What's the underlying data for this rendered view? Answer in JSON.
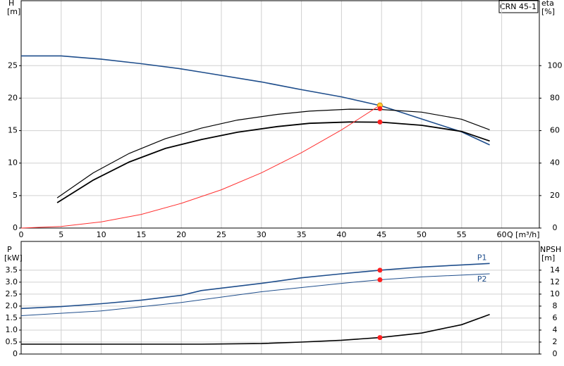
{
  "chart_data": [
    {
      "type": "line",
      "title": "CRN 45-1",
      "y_label": "H",
      "y_unit": "[m]",
      "y2_label": "eta",
      "y2_unit": "[%]",
      "x_label": "Q [m³/h]",
      "xlim": [
        0,
        64.7
      ],
      "xticks": [
        0,
        5,
        10,
        15,
        20,
        25,
        30,
        35,
        40,
        45,
        50,
        55,
        60
      ],
      "ylim": [
        0,
        35
      ],
      "yticks": [
        0,
        5,
        10,
        15,
        20,
        25
      ],
      "y2lim": [
        0,
        140
      ],
      "y2ticks": [
        0,
        20,
        40,
        60,
        80,
        100
      ],
      "grid": true,
      "series": [
        {
          "color": "#1f4e8c",
          "width": 1.6,
          "axis": "y",
          "x": [
            0,
            5,
            10,
            15,
            20,
            22.5,
            30,
            35,
            40,
            45,
            50,
            55,
            58.5
          ],
          "values": [
            26.5,
            26.5,
            26.0,
            25.3,
            24.5,
            24.0,
            22.5,
            21.3,
            20.2,
            18.8,
            16.8,
            14.8,
            12.8
          ]
        },
        {
          "color": "#000000",
          "width": 1.2,
          "axis": "y2",
          "x": [
            4.5,
            9,
            13.5,
            18,
            22.5,
            27,
            32,
            36,
            41,
            45,
            50,
            55,
            58.5
          ],
          "values": [
            18.6,
            34,
            46,
            55,
            61.5,
            66.5,
            70,
            72,
            73.2,
            73,
            71.4,
            67,
            60.5
          ]
        },
        {
          "color": "#000000",
          "width": 1.8,
          "axis": "y2",
          "x": [
            4.5,
            9,
            13.5,
            18,
            22.5,
            27,
            32,
            36,
            41,
            45,
            50,
            55,
            58.5
          ],
          "values": [
            15.6,
            29.5,
            40.7,
            49,
            54.5,
            59,
            62.5,
            64.5,
            65.3,
            65.2,
            63.3,
            59.5,
            53.6
          ]
        },
        {
          "color": "#ff3030",
          "width": 1,
          "axis": "y",
          "x": [
            0,
            5,
            10,
            15,
            20,
            25,
            30,
            35,
            40,
            44.8
          ],
          "values": [
            0,
            0.24,
            0.95,
            2.1,
            3.8,
            5.9,
            8.5,
            11.6,
            15.1,
            18.9
          ]
        }
      ],
      "points": [
        {
          "x": 44.8,
          "y": 18.9,
          "axis": "y",
          "color": "#ffcc33"
        },
        {
          "x": 44.8,
          "y": 73.5,
          "axis": "y2",
          "color": "#ff2020"
        },
        {
          "x": 44.8,
          "y": 65.3,
          "axis": "y2",
          "color": "#ff2020"
        }
      ]
    },
    {
      "type": "line",
      "y_label": "P",
      "y_unit": "[kW]",
      "y2_label": "NPSH",
      "y2_unit": "[m]",
      "xlim": [
        0,
        64.7
      ],
      "ylim": [
        0,
        4.7
      ],
      "yticks": [
        0,
        0.5,
        {
          "value": 1,
          "label": "1.0"
        },
        1.5,
        {
          "value": 2,
          "label": "2.0"
        },
        2.5,
        {
          "value": 3,
          "label": "3.0"
        },
        3.5
      ],
      "y2lim": [
        0,
        18.8
      ],
      "y2ticks": [
        0,
        2,
        4,
        6,
        8,
        10,
        12,
        14
      ],
      "grid": true,
      "series": [
        {
          "name": "P1",
          "color": "#1f4e8c",
          "width": 1.6,
          "axis": "y",
          "x": [
            0,
            5,
            10,
            15,
            20,
            22.5,
            30,
            35,
            40,
            44.8,
            50,
            55,
            58.5
          ],
          "values": [
            1.9,
            1.98,
            2.1,
            2.25,
            2.45,
            2.65,
            2.95,
            3.18,
            3.35,
            3.5,
            3.63,
            3.72,
            3.78
          ]
        },
        {
          "name": "P2",
          "color": "#1f4e8c",
          "width": 1,
          "axis": "y",
          "x": [
            0,
            10,
            20,
            30,
            40,
            44.8,
            50,
            58.5
          ],
          "values": [
            1.6,
            1.8,
            2.15,
            2.6,
            2.95,
            3.1,
            3.22,
            3.35
          ]
        },
        {
          "color": "#000000",
          "width": 1.6,
          "axis": "y2",
          "x": [
            0,
            22.5,
            30,
            35,
            40,
            44.8,
            50,
            55,
            58.5
          ],
          "values": [
            1.65,
            1.65,
            1.75,
            2.0,
            2.3,
            2.75,
            3.5,
            4.9,
            6.6
          ]
        }
      ],
      "points": [
        {
          "x": 44.8,
          "y": 3.5,
          "axis": "y",
          "color": "#ff2020"
        },
        {
          "x": 44.8,
          "y": 3.1,
          "axis": "y",
          "color": "#ff2020"
        },
        {
          "x": 44.8,
          "y": 2.75,
          "axis": "y2",
          "color": "#ff2020"
        }
      ]
    }
  ]
}
